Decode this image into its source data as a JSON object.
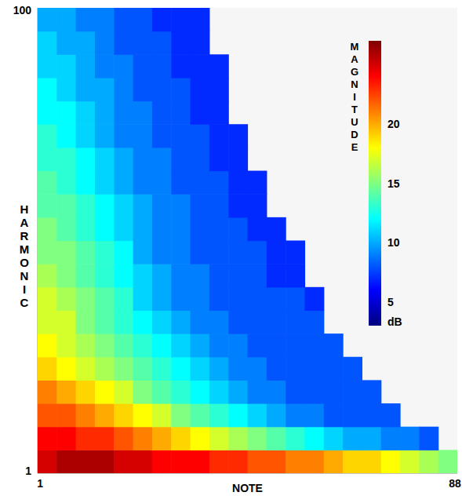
{
  "chart_data": {
    "type": "heatmap",
    "x_label": "NOTE",
    "y_label": "HARMONIC",
    "x": [
      2.5,
      6.5,
      10.5,
      14.5,
      18.5,
      22.5,
      26.5,
      30.5,
      34.5,
      38.5,
      42.5,
      46.5,
      50.5,
      54.5,
      58.5,
      62.5,
      66.5,
      70.5,
      74.5,
      78.5,
      82.5,
      86.5
    ],
    "y": [
      3,
      8,
      13,
      18,
      23,
      28,
      33,
      38,
      43,
      48,
      53,
      58,
      63,
      68,
      73,
      78,
      83,
      88,
      93,
      98
    ],
    "z": [
      [
        25,
        26,
        26,
        26,
        25,
        25,
        24,
        24,
        24,
        23,
        23,
        22,
        22,
        21,
        21,
        20,
        19,
        19,
        18,
        17,
        16,
        15
      ],
      [
        24,
        24,
        23,
        23,
        22,
        21,
        20,
        19,
        18,
        17,
        16,
        15,
        14,
        13,
        12,
        11,
        10,
        10,
        9,
        9,
        8,
        null
      ],
      [
        22,
        22,
        21,
        20,
        19,
        18,
        17,
        15,
        14,
        13,
        12,
        11,
        10,
        9,
        9,
        8,
        8,
        8,
        8,
        null,
        null,
        null
      ],
      [
        21,
        20,
        19,
        18,
        17,
        15,
        14,
        13,
        12,
        11,
        10,
        9,
        9,
        8,
        8,
        8,
        8,
        8,
        null,
        null,
        null,
        null
      ],
      [
        19,
        18,
        17,
        16,
        15,
        14,
        13,
        12,
        11,
        10,
        9,
        9,
        8,
        8,
        8,
        8,
        8,
        null,
        null,
        null,
        null,
        null
      ],
      [
        18,
        17,
        16,
        15,
        14,
        13,
        12,
        11,
        10,
        9,
        9,
        8,
        8,
        8,
        8,
        8,
        null,
        null,
        null,
        null,
        null,
        null
      ],
      [
        17,
        17,
        15,
        14,
        13,
        12,
        11,
        10,
        9,
        9,
        8,
        8,
        8,
        8,
        8,
        null,
        null,
        null,
        null,
        null,
        null,
        null
      ],
      [
        17,
        16,
        15,
        14,
        13,
        11,
        10,
        9,
        9,
        8,
        8,
        8,
        8,
        8,
        7,
        null,
        null,
        null,
        null,
        null,
        null,
        null
      ],
      [
        16,
        15,
        14,
        13,
        12,
        11,
        10,
        9,
        9,
        8,
        8,
        8,
        7,
        7,
        null,
        null,
        null,
        null,
        null,
        null,
        null,
        null
      ],
      [
        15,
        15,
        14,
        13,
        12,
        10,
        9,
        9,
        8,
        8,
        8,
        8,
        7,
        7,
        null,
        null,
        null,
        null,
        null,
        null,
        null,
        null
      ],
      [
        15,
        14,
        13,
        12,
        11,
        10,
        9,
        9,
        8,
        8,
        8,
        7,
        7,
        null,
        null,
        null,
        null,
        null,
        null,
        null,
        null,
        null
      ],
      [
        14,
        14,
        13,
        12,
        11,
        10,
        9,
        9,
        8,
        8,
        7,
        7,
        null,
        null,
        null,
        null,
        null,
        null,
        null,
        null,
        null,
        null
      ],
      [
        14,
        13,
        12,
        11,
        10,
        9,
        9,
        8,
        8,
        8,
        7,
        7,
        null,
        null,
        null,
        null,
        null,
        null,
        null,
        null,
        null,
        null
      ],
      [
        13,
        13,
        12,
        11,
        10,
        9,
        9,
        8,
        8,
        7,
        7,
        null,
        null,
        null,
        null,
        null,
        null,
        null,
        null,
        null,
        null,
        null
      ],
      [
        13,
        12,
        11,
        10,
        9,
        9,
        8,
        8,
        8,
        7,
        7,
        null,
        null,
        null,
        null,
        null,
        null,
        null,
        null,
        null,
        null,
        null
      ],
      [
        12,
        12,
        11,
        10,
        9,
        9,
        8,
        8,
        7,
        7,
        null,
        null,
        null,
        null,
        null,
        null,
        null,
        null,
        null,
        null,
        null,
        null
      ],
      [
        12,
        11,
        10,
        10,
        9,
        8,
        8,
        8,
        7,
        7,
        null,
        null,
        null,
        null,
        null,
        null,
        null,
        null,
        null,
        null,
        null,
        null
      ],
      [
        11,
        11,
        10,
        9,
        9,
        8,
        8,
        7,
        7,
        7,
        null,
        null,
        null,
        null,
        null,
        null,
        null,
        null,
        null,
        null,
        null,
        null
      ],
      [
        11,
        10,
        10,
        9,
        8,
        8,
        8,
        7,
        7,
        null,
        null,
        null,
        null,
        null,
        null,
        null,
        null,
        null,
        null,
        null,
        null,
        null
      ],
      [
        10,
        10,
        9,
        9,
        8,
        8,
        7,
        7,
        7,
        null,
        null,
        null,
        null,
        null,
        null,
        null,
        null,
        null,
        null,
        null,
        null,
        null
      ]
    ],
    "xlim": [
      0.5,
      88.5
    ],
    "ylim": [
      0.5,
      100.5
    ],
    "xticks": [
      1,
      88
    ],
    "yticks": [
      1,
      100
    ],
    "colorbar": {
      "label": "MAGNITUDE",
      "unit": "dB",
      "range": [
        3,
        27
      ],
      "ticks": [
        5,
        10,
        15,
        20
      ]
    }
  }
}
